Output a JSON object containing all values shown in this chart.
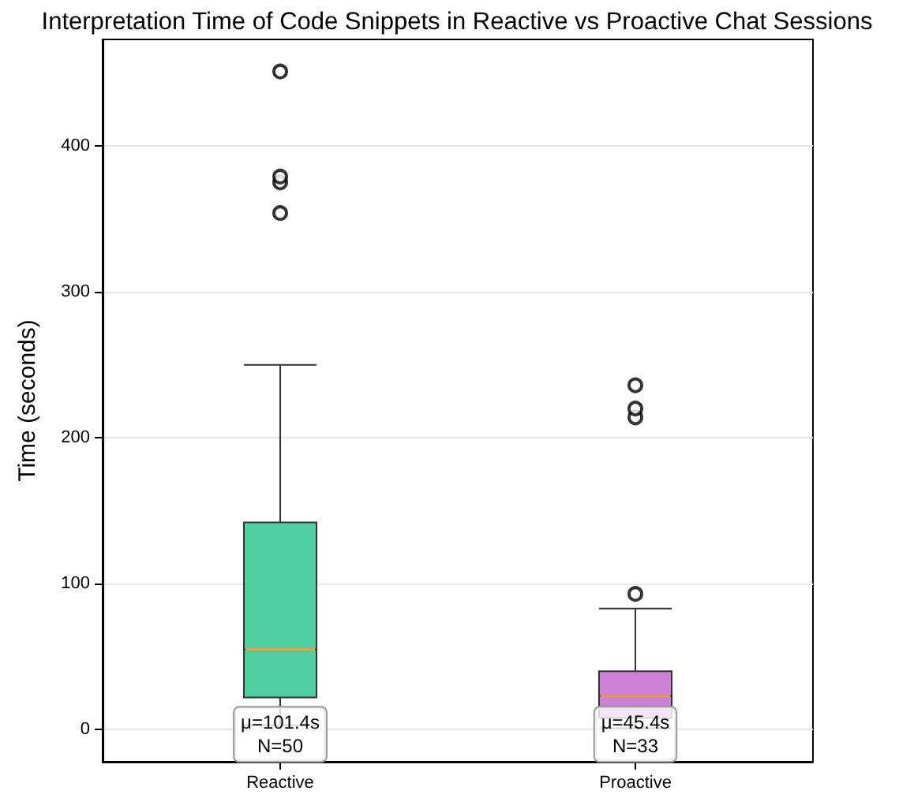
{
  "chart_data": {
    "type": "box",
    "title": "Interpretation Time of Code Snippets in Reactive vs Proactive Chat Sessions",
    "ylabel": "Time (seconds)",
    "categories": [
      "Reactive",
      "Proactive"
    ],
    "boxes": [
      {
        "low": 3,
        "q1": 22,
        "median": 55,
        "q3": 142,
        "high": 250,
        "outliers": [
          354,
          375,
          379,
          451
        ]
      },
      {
        "low": 1,
        "q1": 8,
        "median": 23,
        "q3": 40,
        "high": 83,
        "outliers": [
          93,
          214,
          220,
          236
        ]
      }
    ],
    "colors": [
      "#4fcfa0",
      "#cc80d6"
    ],
    "annotations": [
      "μ=101.4s\nN=50",
      "μ=45.4s\nN=33"
    ],
    "ylim": [
      -22,
      473
    ],
    "yticks": [
      0,
      100,
      200,
      300,
      400
    ],
    "grid": "y",
    "marker": "circle"
  }
}
